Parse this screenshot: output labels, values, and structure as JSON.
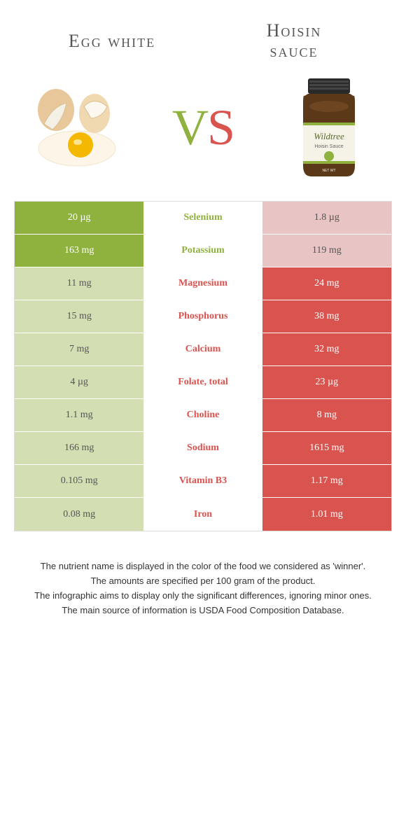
{
  "left_title": "Egg white",
  "right_title_line1": "Hoisin",
  "right_title_line2": "sauce",
  "vs_v": "V",
  "vs_s": "S",
  "colors": {
    "green_strong": "#8fb23f",
    "green_light": "#d3dfb3",
    "red_strong": "#d9534f",
    "red_light": "#e8c4c4",
    "text_muted": "#555"
  },
  "rows": [
    {
      "left": "20 µg",
      "mid": "Selenium",
      "right": "1.8 µg",
      "winner": "left"
    },
    {
      "left": "163 mg",
      "mid": "Potassium",
      "right": "119 mg",
      "winner": "left"
    },
    {
      "left": "11 mg",
      "mid": "Magnesium",
      "right": "24 mg",
      "winner": "right"
    },
    {
      "left": "15 mg",
      "mid": "Phosphorus",
      "right": "38 mg",
      "winner": "right"
    },
    {
      "left": "7 mg",
      "mid": "Calcium",
      "right": "32 mg",
      "winner": "right"
    },
    {
      "left": "4 µg",
      "mid": "Folate, total",
      "right": "23 µg",
      "winner": "right"
    },
    {
      "left": "1.1 mg",
      "mid": "Choline",
      "right": "8 mg",
      "winner": "right"
    },
    {
      "left": "166 mg",
      "mid": "Sodium",
      "right": "1615 mg",
      "winner": "right"
    },
    {
      "left": "0.105 mg",
      "mid": "Vitamin B3",
      "right": "1.17 mg",
      "winner": "right"
    },
    {
      "left": "0.08 mg",
      "mid": "Iron",
      "right": "1.01 mg",
      "winner": "right"
    }
  ],
  "footer": {
    "l1": "The nutrient name is displayed in the color of the food we considered as 'winner'.",
    "l2": "The amounts are specified per 100 gram of the product.",
    "l3": "The infographic aims to display only the significant differences, ignoring minor ones.",
    "l4": "The main source of information is USDA Food Composition Database."
  },
  "jar_label": "Wildtree",
  "jar_sublabel": "Hoisin Sauce"
}
